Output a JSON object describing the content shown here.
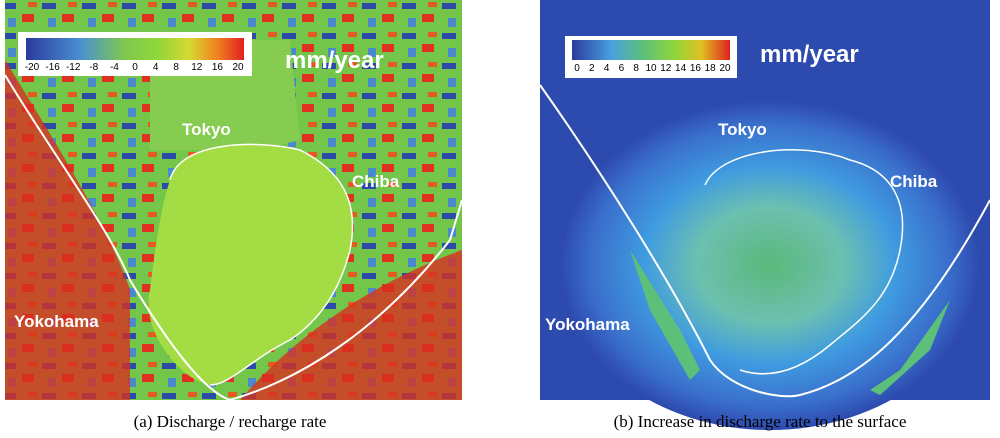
{
  "panels": [
    {
      "colorbar_labels": [
        "-20",
        "-16",
        "-12",
        "-8",
        "-4",
        "0",
        "4",
        "8",
        "12",
        "16",
        "20"
      ],
      "unit": "mm/year",
      "places": {
        "tokyo": "Tokyo",
        "chiba": "Chiba",
        "yokohama": "Yokohama"
      },
      "caption": "(a) Discharge / recharge rate"
    },
    {
      "colorbar_labels": [
        "0",
        "2",
        "4",
        "6",
        "8",
        "10",
        "12",
        "14",
        "16",
        "18",
        "20"
      ],
      "unit": "mm/year",
      "places": {
        "tokyo": "Tokyo",
        "chiba": "Chiba",
        "yokohama": "Yokohama"
      },
      "caption": "(b) Increase in discharge rate to the surface"
    }
  ]
}
